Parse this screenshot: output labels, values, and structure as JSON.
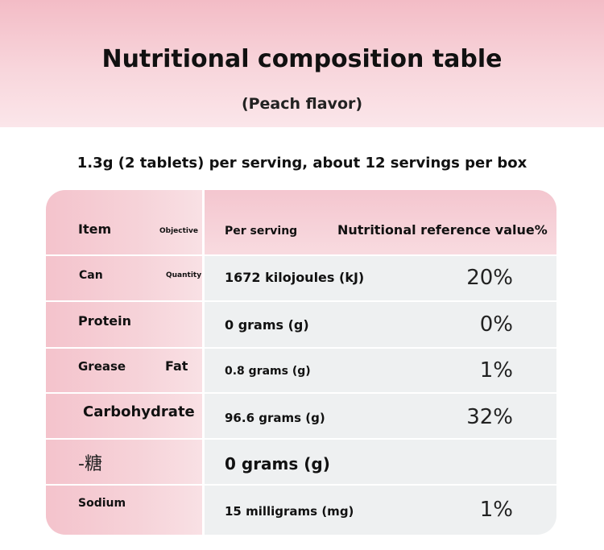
{
  "header": {
    "title": "Nutritional composition table",
    "subtitle": "(Peach flavor)"
  },
  "serving_info": "1.3g (2 tablets) per serving, about 12 servings per box",
  "table": {
    "columns": {
      "item": "Item",
      "item_small": "Objective",
      "per_serving": "Per serving",
      "nrv": "Nutritional reference value%"
    },
    "rows": [
      {
        "name": "Can",
        "name_extra": "Quantity",
        "value": "1672 kilojoules (kJ)",
        "nrv": "20%"
      },
      {
        "name": "Protein",
        "name_extra": "",
        "value": "0 grams (g)",
        "nrv": "0%"
      },
      {
        "name": "Grease",
        "name_extra": "Fat",
        "value": "0.8 grams (g)",
        "nrv": "1%"
      },
      {
        "name": "Carbohydrate",
        "name_extra": "",
        "value": "96.6 grams (g)",
        "nrv": "32%"
      },
      {
        "name": "-糖",
        "name_extra": "",
        "value": "0 grams (g)",
        "nrv": ""
      },
      {
        "name": "Sodium",
        "name_extra": "",
        "value": "15 milligrams (mg)",
        "nrv": "1%"
      }
    ]
  }
}
